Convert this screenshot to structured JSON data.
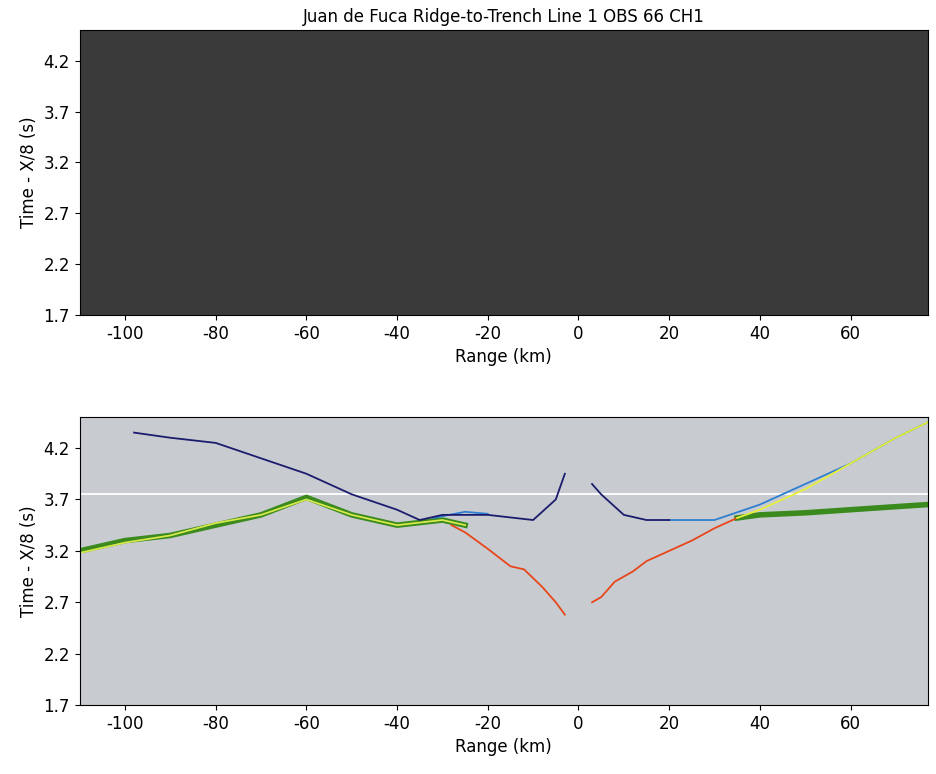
{
  "chart_data": [
    {
      "type": "seismic_section",
      "title": "Juan de Fuca Ridge-to-Trench Line 1 OBS 66 CH1",
      "x_label": "Range (km)",
      "y_label": "Time - X/8 (s)",
      "color": "#3a3a3a",
      "xlim": [
        -110,
        77
      ],
      "ylim": [
        1.7,
        4.5
      ],
      "xticks": [
        -100,
        -80,
        -60,
        -40,
        -20,
        0,
        20,
        40,
        60
      ],
      "yticks": [
        1.7,
        2.2,
        2.7,
        3.2,
        3.7,
        4.2
      ],
      "series": []
    },
    {
      "type": "line",
      "x_label": "Range (km)",
      "y_label": "Time - X/8 (s)",
      "color": "#c8ccd0",
      "xlim": [
        -110,
        77
      ],
      "ylim": [
        1.7,
        4.5
      ],
      "xticks": [
        -100,
        -80,
        -60,
        -40,
        -20,
        0,
        20,
        40,
        60
      ],
      "yticks": [
        1.7,
        2.2,
        2.7,
        3.2,
        3.7,
        4.2
      ],
      "series": [
        {
          "color": "#ffffff",
          "x": [
            -110,
            77
          ],
          "values": [
            3.75,
            3.75
          ]
        },
        {
          "color": "#3a8a1e",
          "x": [
            -110,
            -100,
            -90,
            -80,
            -70,
            -60,
            -50,
            -40,
            -30,
            -25
          ],
          "values": [
            3.2,
            3.3,
            3.35,
            3.45,
            3.55,
            3.72,
            3.55,
            3.45,
            3.5,
            3.45
          ]
        },
        {
          "color": "#d6e84a",
          "x": [
            -110,
            -100,
            -90,
            -80,
            -70,
            -60,
            -50,
            -40,
            -30,
            -25
          ],
          "values": [
            3.18,
            3.28,
            3.35,
            3.47,
            3.55,
            3.7,
            3.55,
            3.45,
            3.5,
            3.45
          ]
        },
        {
          "color": "#3a8a1e",
          "x": [
            35,
            40,
            50,
            60,
            70,
            77
          ],
          "values": [
            3.52,
            3.55,
            3.57,
            3.6,
            3.63,
            3.65
          ]
        },
        {
          "color": "#e8461a",
          "x": [
            -28,
            -25,
            -20,
            -15,
            -12,
            -8,
            -5,
            -3
          ],
          "values": [
            3.45,
            3.38,
            3.22,
            3.05,
            3.02,
            2.85,
            2.7,
            2.58
          ]
        },
        {
          "color": "#e8461a",
          "x": [
            3,
            5,
            8,
            12,
            15,
            20,
            25,
            30,
            35
          ],
          "values": [
            2.7,
            2.75,
            2.9,
            3.0,
            3.1,
            3.2,
            3.3,
            3.42,
            3.52
          ]
        },
        {
          "color": "#2f7fd0",
          "x": [
            -32,
            -25,
            -20
          ],
          "values": [
            3.52,
            3.58,
            3.56
          ]
        },
        {
          "color": "#2f7fd0",
          "x": [
            20,
            30,
            40,
            50,
            60,
            70,
            77
          ],
          "values": [
            3.5,
            3.5,
            3.65,
            3.85,
            4.05,
            4.3,
            4.45
          ]
        },
        {
          "color": "#e6ef3a",
          "x": [
            35,
            40,
            50,
            60,
            70,
            77
          ],
          "values": [
            3.52,
            3.6,
            3.8,
            4.05,
            4.3,
            4.45
          ]
        },
        {
          "color": "#1c1c6e",
          "x": [
            -98,
            -90,
            -80,
            -70,
            -60,
            -50,
            -40,
            -35,
            -30,
            -20,
            -10,
            -5,
            -3
          ],
          "values": [
            4.35,
            4.3,
            4.25,
            4.1,
            3.95,
            3.75,
            3.6,
            3.5,
            3.55,
            3.55,
            3.5,
            3.7,
            3.95
          ]
        },
        {
          "color": "#1c1c6e",
          "x": [
            3,
            5,
            10,
            15,
            20
          ],
          "values": [
            3.85,
            3.75,
            3.55,
            3.5,
            3.5
          ]
        }
      ]
    }
  ]
}
